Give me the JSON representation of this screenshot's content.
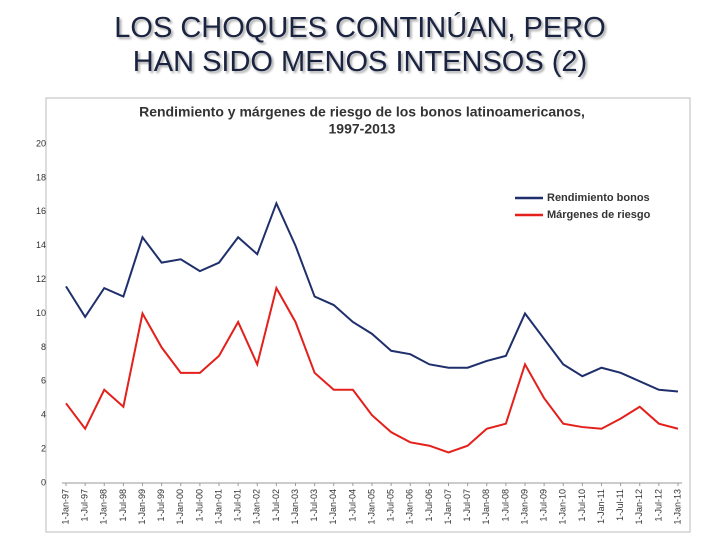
{
  "slide": {
    "title_lines": [
      "LOS CHOQUES CONTINÚAN, PERO",
      "HAN SIDO MENOS INTENSOS (2)"
    ]
  },
  "chart_data": {
    "type": "line",
    "title_lines": [
      "Rendimiento y márgenes de riesgo de los bonos latinoamericanos,",
      "1997-2013"
    ],
    "categories": [
      "1-Jan-97",
      "1-Jul-97",
      "1-Jan-98",
      "1-Jul-98",
      "1-Jan-99",
      "1-Jul-99",
      "1-Jan-00",
      "1-Jul-00",
      "1-Jan-01",
      "1-Jul-01",
      "1-Jan-02",
      "1-Jul-02",
      "1-Jan-03",
      "1-Jul-03",
      "1-Jan-04",
      "1-Jul-04",
      "1-Jan-05",
      "1-Jul-05",
      "1-Jan-06",
      "1-Jul-06",
      "1-Jan-07",
      "1-Jul-07",
      "1-Jan-08",
      "1-Jul-08",
      "1-Jan-09",
      "1-Jul-09",
      "1-Jan-10",
      "1-Jul-10",
      "1-Jan-11",
      "1-Jul-11",
      "1-Jan-12",
      "1-Jul-12",
      "1-Jan-13"
    ],
    "series": [
      {
        "name": "Rendimiento bonos",
        "color": "#1f2f6b",
        "values": [
          11.6,
          9.8,
          11.5,
          11,
          14.5,
          13,
          13.2,
          12.5,
          13,
          14.5,
          13.5,
          16.5,
          14,
          11,
          10.5,
          9.5,
          8.8,
          7.8,
          7.6,
          7,
          6.8,
          6.8,
          7.2,
          7.5,
          10,
          8.5,
          7,
          6.3,
          6.8,
          6.5,
          6,
          5.5,
          5.4
        ]
      },
      {
        "name": "Márgenes de riesgo",
        "color": "#e3201b",
        "values": [
          4.7,
          3.2,
          5.5,
          4.5,
          10,
          8,
          6.5,
          6.5,
          7.5,
          9.5,
          7,
          11.5,
          9.5,
          6.5,
          5.5,
          5.5,
          4,
          3,
          2.4,
          2.2,
          1.8,
          2.2,
          3.2,
          3.5,
          7,
          5,
          3.5,
          3.3,
          3.2,
          3.8,
          4.5,
          3.5,
          3.2
        ]
      }
    ],
    "ylim": [
      0,
      20
    ],
    "yticks": [
      0,
      2,
      4,
      6,
      8,
      10,
      12,
      14,
      16,
      18,
      20
    ],
    "grid": false,
    "legend": "upper-right"
  }
}
